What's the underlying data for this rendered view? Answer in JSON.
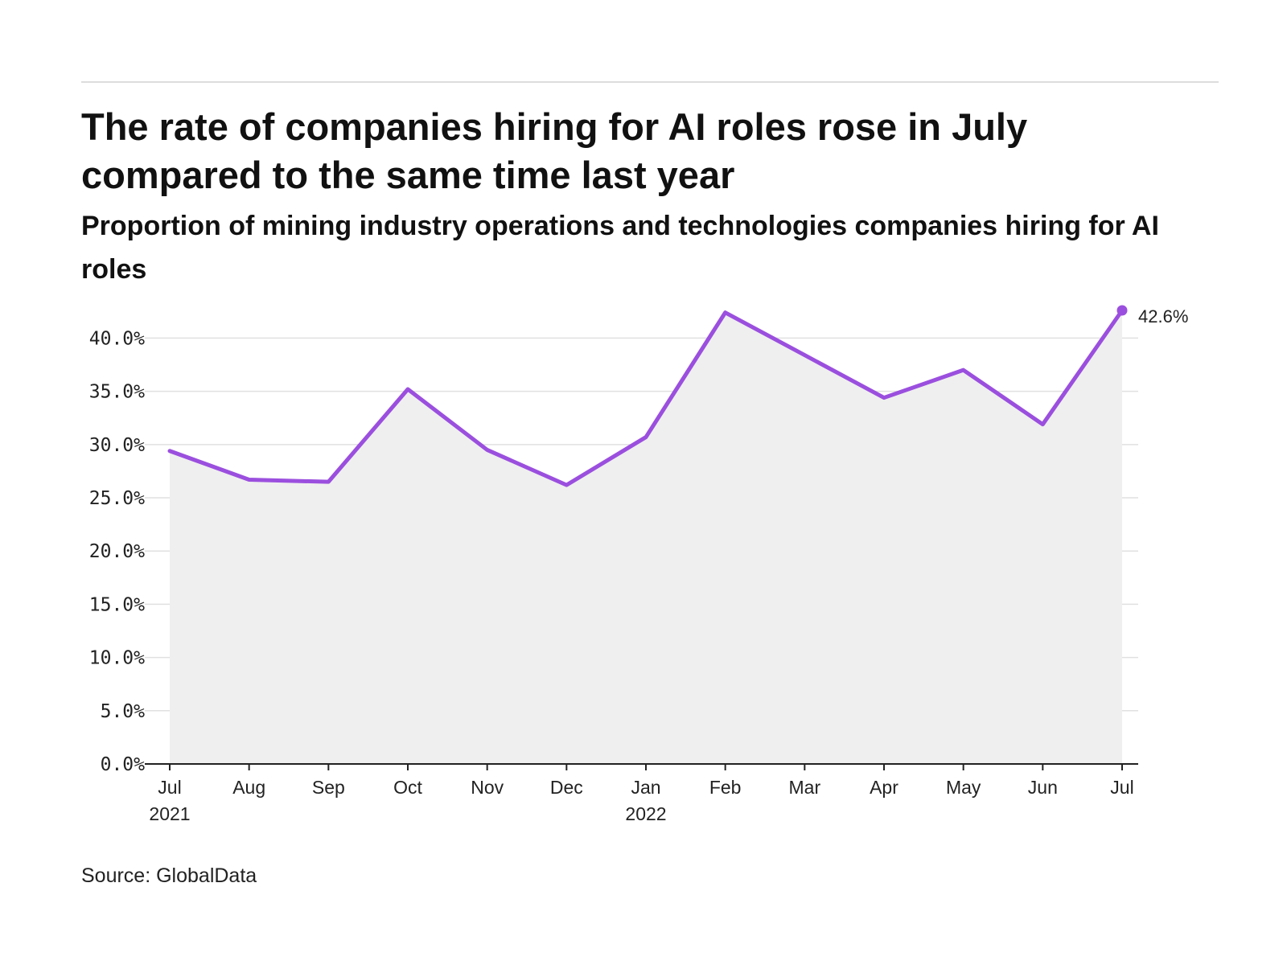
{
  "title": "The rate of companies hiring for AI roles rose in July compared to the same time last year",
  "subtitle": "Proportion of mining industry operations and technologies companies hiring for AI roles",
  "source": "Source: GlobalData",
  "colors": {
    "line": "#9b4fde",
    "area": "#efefef",
    "grid": "#e0e0e0",
    "axis": "#222222"
  },
  "chart_data": {
    "type": "line",
    "categories": [
      "Jul 2021",
      "Aug",
      "Sep",
      "Oct",
      "Nov",
      "Dec",
      "Jan 2022",
      "Feb",
      "Mar",
      "Apr",
      "May",
      "Jun",
      "Jul"
    ],
    "x_tick_labels": [
      [
        "Jul",
        "2021"
      ],
      [
        "Aug"
      ],
      [
        "Sep"
      ],
      [
        "Oct"
      ],
      [
        "Nov"
      ],
      [
        "Dec"
      ],
      [
        "Jan",
        "2022"
      ],
      [
        "Feb"
      ],
      [
        "Mar"
      ],
      [
        "Apr"
      ],
      [
        "May"
      ],
      [
        "Jun"
      ],
      [
        "Jul"
      ]
    ],
    "values": [
      29.4,
      26.7,
      26.5,
      35.2,
      29.5,
      26.2,
      30.7,
      42.4,
      38.4,
      34.4,
      37.0,
      31.9,
      42.6
    ],
    "y_tick_values": [
      0,
      5,
      10,
      15,
      20,
      25,
      30,
      35,
      40
    ],
    "y_tick_labels": [
      "0.0%",
      "5.0%",
      "10.0%",
      "15.0%",
      "20.0%",
      "25.0%",
      "30.0%",
      "35.0%",
      "40.0%"
    ],
    "ylim": [
      0,
      42.6
    ],
    "last_value_label": "42.6%",
    "area_fill": true,
    "grid": true,
    "legend": "none"
  }
}
